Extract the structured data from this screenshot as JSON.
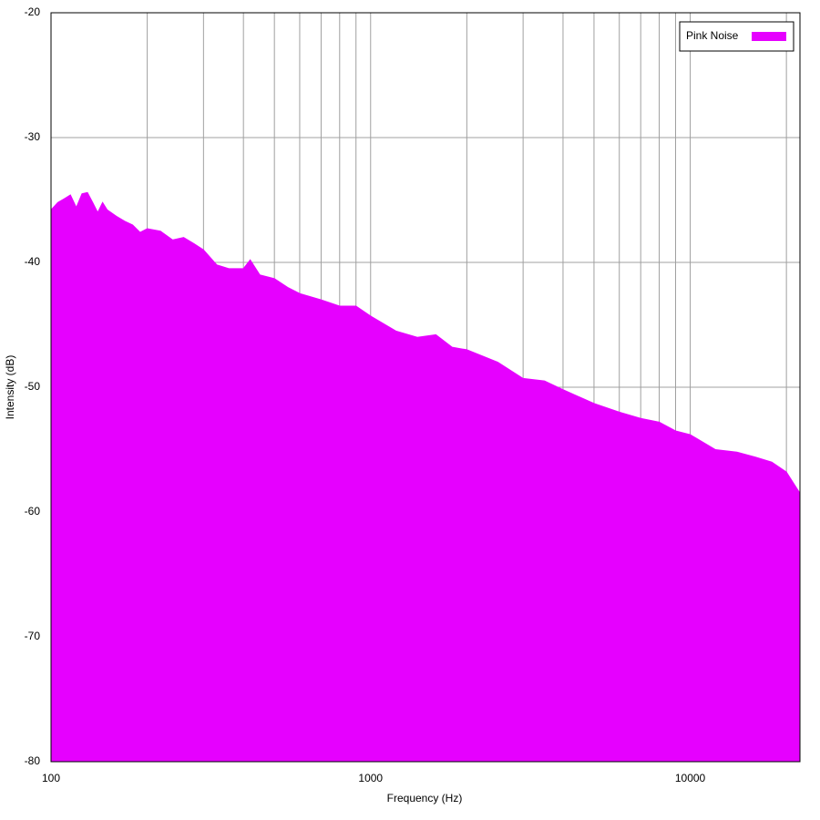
{
  "chart_data": {
    "type": "area",
    "x_label": "Frequency (Hz)",
    "y_label": "Intensity (dB)",
    "xscale": "log",
    "xlim": [
      100,
      22050
    ],
    "ylim": [
      -80,
      -20
    ],
    "xticks": [
      100,
      1000,
      10000
    ],
    "x_minor_ticks": [
      200,
      300,
      400,
      500,
      600,
      700,
      800,
      900,
      2000,
      3000,
      4000,
      5000,
      6000,
      7000,
      8000,
      9000,
      20000
    ],
    "yticks": [
      -80,
      -70,
      -60,
      -50,
      -40,
      -30,
      -20
    ],
    "grid": true,
    "legend": "top-right",
    "x": [
      100,
      105,
      110,
      115,
      120,
      125,
      130,
      135,
      140,
      145,
      150,
      160,
      170,
      180,
      190,
      200,
      220,
      240,
      260,
      280,
      300,
      330,
      360,
      400,
      420,
      450,
      500,
      550,
      600,
      700,
      800,
      900,
      1000,
      1200,
      1400,
      1600,
      1800,
      2000,
      2500,
      3000,
      3500,
      4000,
      5000,
      6000,
      7000,
      8000,
      9000,
      10000,
      12000,
      14000,
      16000,
      18000,
      20000,
      22050
    ],
    "series": [
      {
        "name": "Pink Noise",
        "color": "#e600ff",
        "values": [
          -35.8,
          -35.2,
          -34.9,
          -34.6,
          -35.6,
          -34.5,
          -34.4,
          -35.2,
          -36.0,
          -35.2,
          -35.8,
          -36.3,
          -36.7,
          -37.0,
          -37.6,
          -37.3,
          -37.5,
          -38.2,
          -38.0,
          -38.5,
          -39.0,
          -40.2,
          -40.5,
          -40.5,
          -39.8,
          -41.0,
          -41.3,
          -42.0,
          -42.5,
          -43.0,
          -43.5,
          -43.5,
          -44.3,
          -45.5,
          -46.0,
          -45.8,
          -46.8,
          -47.0,
          -48.0,
          -49.3,
          -49.5,
          -50.2,
          -51.3,
          -52.0,
          -52.5,
          -52.8,
          -53.5,
          -53.8,
          -55.0,
          -55.2,
          -55.6,
          -56.0,
          -56.8,
          -58.5
        ]
      }
    ]
  }
}
